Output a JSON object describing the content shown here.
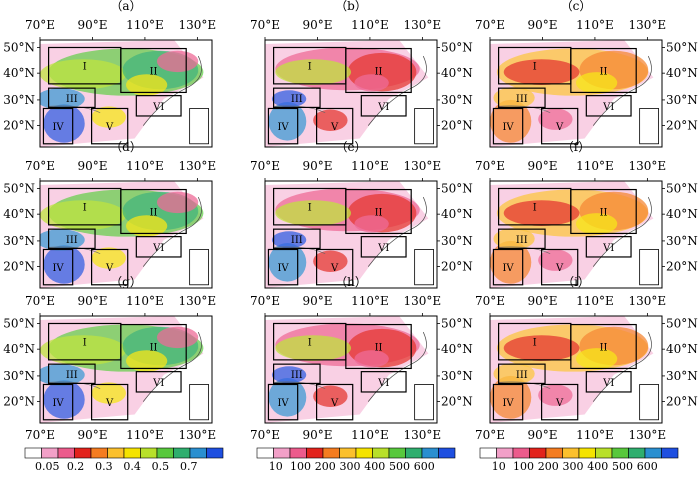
{
  "figure": {
    "panels": [
      {
        "label": "（a）",
        "colorbar": 0
      },
      {
        "label": "（b）",
        "colorbar": 1
      },
      {
        "label": "（c）",
        "colorbar": 2
      },
      {
        "label": "（d）",
        "colorbar": 0
      },
      {
        "label": "（e）",
        "colorbar": 1
      },
      {
        "label": "（f）",
        "colorbar": 2
      },
      {
        "label": "（g）",
        "colorbar": 0
      },
      {
        "label": "（h）",
        "colorbar": 1
      },
      {
        "label": "（i）",
        "colorbar": 2
      }
    ],
    "lon_ticks": [
      "70°E",
      "90°E",
      "110°E",
      "130°E"
    ],
    "lat_ticks": [
      "50°N",
      "40°N",
      "30°N",
      "20°N"
    ],
    "regions": [
      "I",
      "II",
      "III",
      "IV",
      "V",
      "VI"
    ],
    "colorbars": [
      {
        "labels": [
          "0.05",
          "0.2",
          "0.3",
          "0.4",
          "0.5",
          "0.7"
        ],
        "colors": [
          "#ffffff",
          "#f2a0c8",
          "#ec5b8c",
          "#e2231c",
          "#f47c20",
          "#fbc02d",
          "#f5e300",
          "#b8e02a",
          "#58c83c",
          "#2fae6e",
          "#2a8fd0",
          "#1e4fe0"
        ]
      },
      {
        "labels": [
          "10",
          "100",
          "200",
          "300",
          "400",
          "500",
          "600"
        ],
        "colors": [
          "#ffffff",
          "#f2a0c8",
          "#ec5b8c",
          "#e2231c",
          "#f47c20",
          "#fbc02d",
          "#f5e300",
          "#b8e02a",
          "#58c83c",
          "#2fae6e",
          "#2a8fd0",
          "#1e4fe0"
        ]
      },
      {
        "labels": [
          "10",
          "100",
          "200",
          "300",
          "400",
          "500",
          "600"
        ],
        "colors": [
          "#ffffff",
          "#f2a0c8",
          "#ec5b8c",
          "#e2231c",
          "#f47c20",
          "#fbc02d",
          "#f5e300",
          "#b8e02a",
          "#58c83c",
          "#2fae6e",
          "#2a8fd0",
          "#1e4fe0"
        ]
      }
    ]
  }
}
